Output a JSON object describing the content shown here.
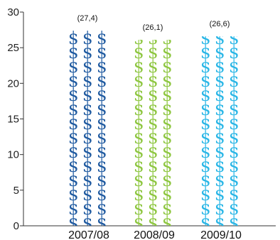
{
  "chart_data": {
    "type": "bar",
    "categories": [
      "2007/08",
      "2008/09",
      "2009/10"
    ],
    "values": [
      27.4,
      26.1,
      26.6
    ],
    "data_labels": [
      "(27,4)",
      "(26,1)",
      "(26,6)"
    ],
    "colors": [
      "#1f5aa0",
      "#8dc63f",
      "#29b6e6"
    ],
    "symbol": "$",
    "title": "",
    "xlabel": "",
    "ylabel": "",
    "ylim": [
      0,
      30
    ],
    "yticks": [
      "0",
      "5",
      "10",
      "15",
      "20",
      "25",
      "30"
    ],
    "grid": false,
    "legend": "none"
  }
}
